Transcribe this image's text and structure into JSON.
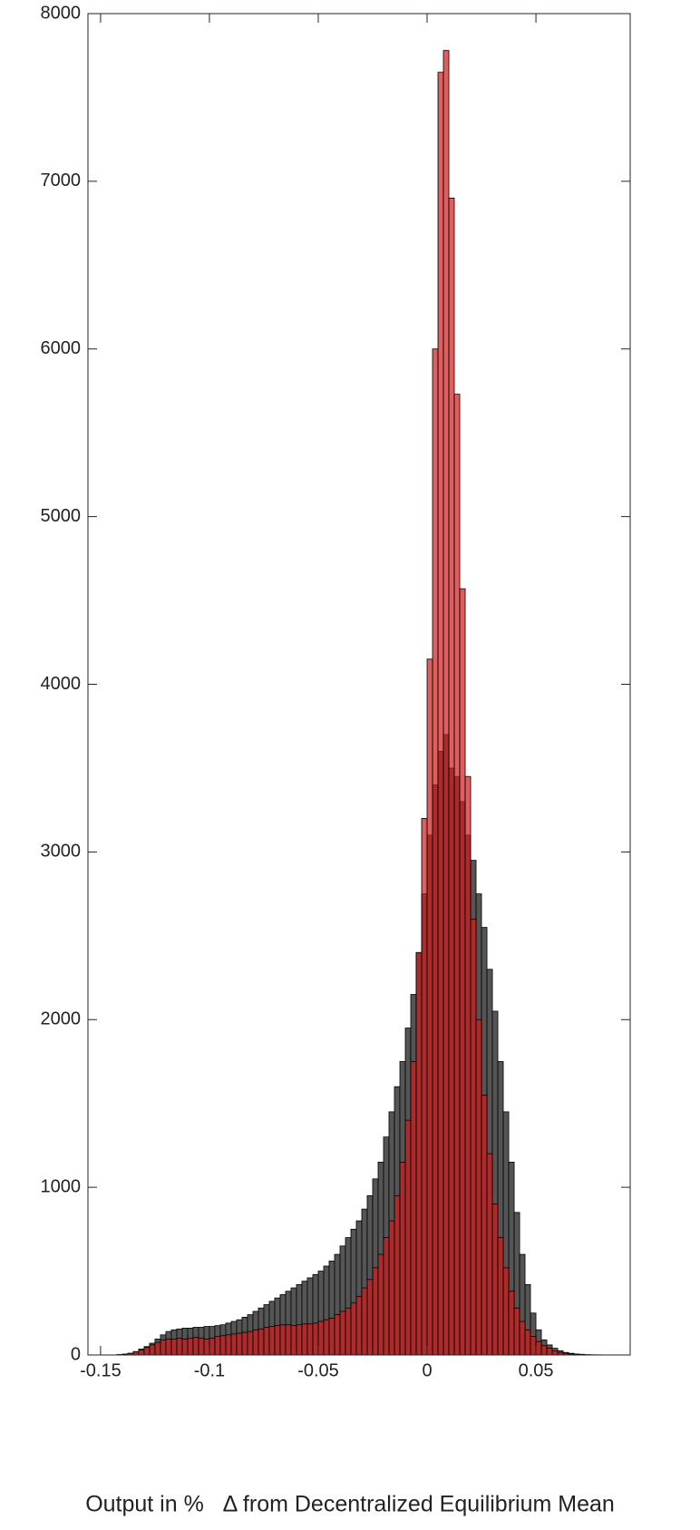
{
  "chart_data": {
    "type": "histogram",
    "x_label": "Output in %   Δ from Decentralized Equilibrium Mean",
    "bins": [
      -0.145,
      -0.1425,
      -0.14,
      -0.1375,
      -0.135,
      -0.1325,
      -0.13,
      -0.1275,
      -0.125,
      -0.1225,
      -0.12,
      -0.1175,
      -0.115,
      -0.1125,
      -0.11,
      -0.1075,
      -0.105,
      -0.1025,
      -0.1,
      -0.0975,
      -0.095,
      -0.0925,
      -0.09,
      -0.0875,
      -0.085,
      -0.0825,
      -0.08,
      -0.0775,
      -0.075,
      -0.0725,
      -0.07,
      -0.0675,
      -0.065,
      -0.0625,
      -0.06,
      -0.0575,
      -0.055,
      -0.0525,
      -0.05,
      -0.0475,
      -0.045,
      -0.0425,
      -0.04,
      -0.0375,
      -0.035,
      -0.0325,
      -0.03,
      -0.0275,
      -0.025,
      -0.0225,
      -0.02,
      -0.0175,
      -0.015,
      -0.0125,
      -0.01,
      -0.0075,
      -0.005,
      -0.0025,
      0,
      0.0025,
      0.005,
      0.0075,
      0.01,
      0.0125,
      0.015,
      0.0175,
      0.02,
      0.0225,
      0.025,
      0.0275,
      0.03,
      0.0325,
      0.035,
      0.0375,
      0.04,
      0.0425,
      0.045,
      0.0475,
      0.05,
      0.0525,
      0.055,
      0.0575,
      0.06,
      0.0625,
      0.065,
      0.0675,
      0.07,
      0.0725,
      0.075,
      0.0775,
      0.08,
      0.0825,
      0.085
    ],
    "series": [
      {
        "color": "#555555",
        "opacity": 1,
        "values": [
          0,
          2,
          5,
          10,
          20,
          35,
          50,
          70,
          95,
          120,
          140,
          150,
          155,
          160,
          160,
          165,
          165,
          170,
          170,
          175,
          180,
          190,
          200,
          210,
          225,
          240,
          260,
          280,
          300,
          320,
          340,
          360,
          380,
          400,
          420,
          440,
          460,
          480,
          500,
          530,
          560,
          600,
          650,
          700,
          750,
          800,
          870,
          950,
          1050,
          1150,
          1300,
          1450,
          1600,
          1750,
          1950,
          2150,
          2400,
          2750,
          3100,
          3400,
          3600,
          3700,
          3500,
          3450,
          3300,
          3100,
          2950,
          2750,
          2550,
          2300,
          2050,
          1750,
          1450,
          1150,
          850,
          600,
          420,
          250,
          150,
          90,
          60,
          40,
          25,
          15,
          10,
          6,
          4,
          2,
          1,
          1,
          0,
          0
        ]
      },
      {
        "color": "#d41a1a",
        "opacity": 0.7,
        "values": [
          0,
          2,
          5,
          10,
          20,
          30,
          45,
          60,
          75,
          90,
          95,
          95,
          100,
          95,
          100,
          105,
          100,
          95,
          100,
          110,
          115,
          120,
          125,
          130,
          135,
          140,
          150,
          155,
          165,
          170,
          175,
          180,
          180,
          175,
          180,
          185,
          185,
          190,
          200,
          210,
          220,
          240,
          260,
          280,
          310,
          350,
          400,
          450,
          520,
          600,
          700,
          800,
          950,
          1150,
          1400,
          1750,
          2400,
          3200,
          4150,
          6000,
          7650,
          7780,
          6900,
          5730,
          4570,
          3450,
          2600,
          2000,
          1550,
          1200,
          900,
          700,
          520,
          380,
          280,
          200,
          150,
          110,
          80,
          55,
          40,
          25,
          15,
          10,
          6,
          4,
          2,
          1,
          1,
          0,
          0,
          0
        ]
      }
    ],
    "xlim": [
      -0.1558,
      0.0933
    ],
    "xticks": [
      -0.15,
      -0.1,
      -0.05,
      0,
      0.05
    ],
    "ylim": [
      0,
      8000
    ],
    "yticks": [
      0,
      1000,
      2000,
      3000,
      4000,
      5000,
      6000,
      7000,
      8000
    ]
  }
}
